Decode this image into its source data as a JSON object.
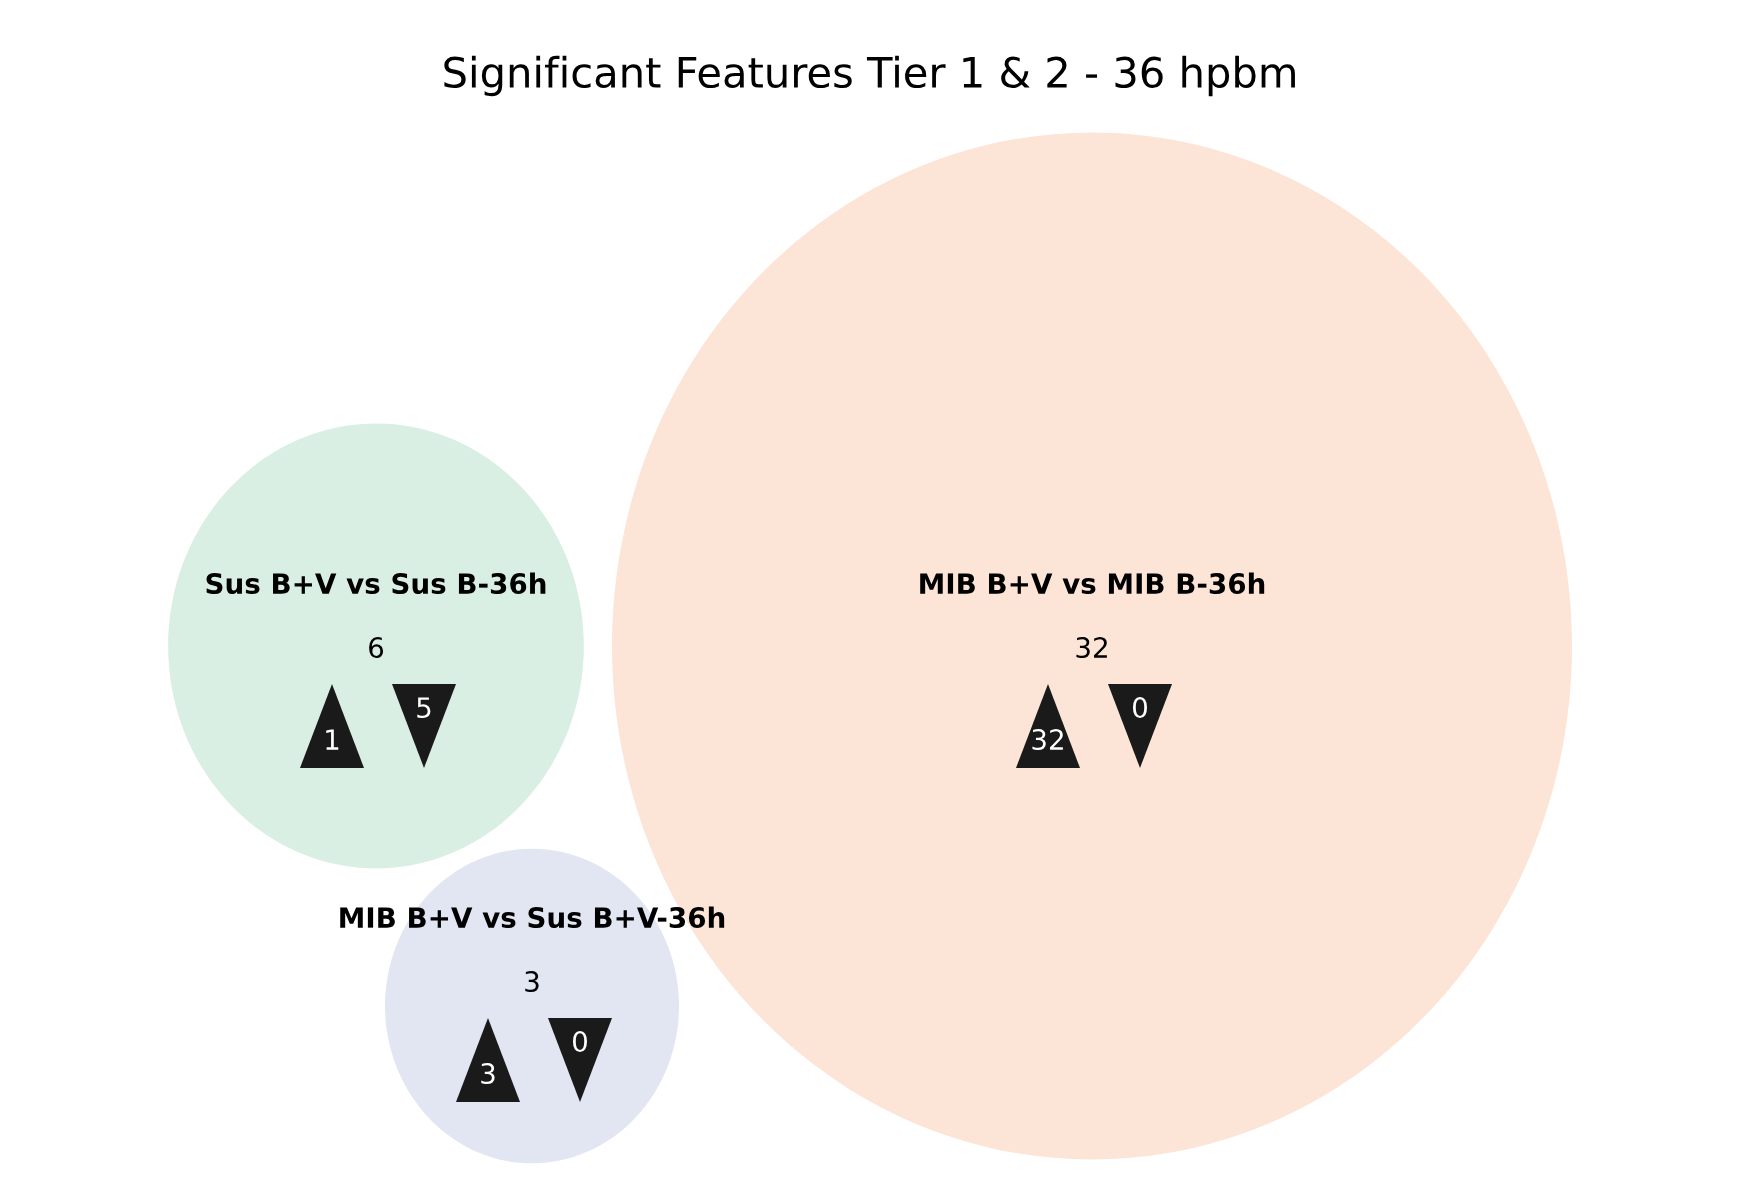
{
  "chart_data": {
    "type": "other",
    "title": "Significant Features Tier 1 & 2 - 36 hpbm",
    "categories": [
      "Sus B+V vs Sus B-36h",
      "MIB B+V vs MIB B-36h",
      "MIB B+V vs Sus B+V-36h"
    ],
    "values": [
      6,
      32,
      3
    ],
    "colors": [
      "#d9efe3",
      "#fce5d6",
      "#e2e5f2"
    ],
    "series": [
      {
        "color": "#1a1a1a",
        "values": [
          1,
          32,
          3
        ]
      },
      {
        "color": "#1a1a1a",
        "values": [
          5,
          0,
          0
        ]
      }
    ],
    "data_labels": true
  }
}
